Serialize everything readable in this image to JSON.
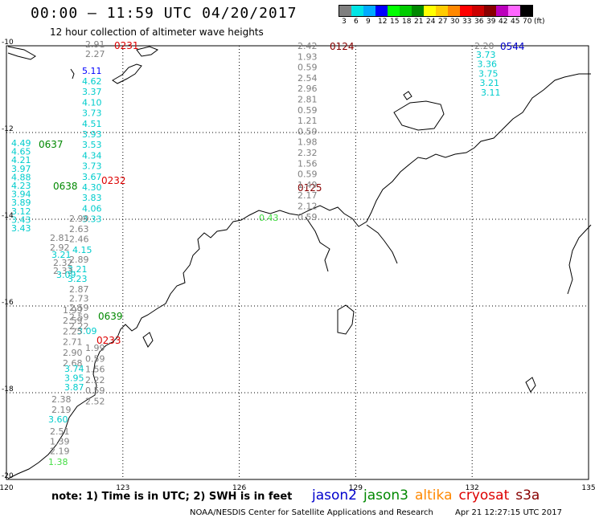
{
  "header": {
    "title": "00:00 — 11:59 UTC 04/20/2017",
    "subtitle": "12 hour collection of altimeter wave heights"
  },
  "legend": {
    "unit": "(ft)",
    "bins": [
      {
        "label": "3",
        "color": "#808080"
      },
      {
        "label": "6",
        "color": "#00e5e5"
      },
      {
        "label": "9",
        "color": "#00aaff"
      },
      {
        "label": "12",
        "color": "#0000ff"
      },
      {
        "label": "15",
        "color": "#00ff00"
      },
      {
        "label": "18",
        "color": "#00cc00"
      },
      {
        "label": "21",
        "color": "#008800"
      },
      {
        "label": "24",
        "color": "#ffff00"
      },
      {
        "label": "27",
        "color": "#ffcc00"
      },
      {
        "label": "30",
        "color": "#ff8800"
      },
      {
        "label": "33",
        "color": "#ff0000"
      },
      {
        "label": "36",
        "color": "#cc0000"
      },
      {
        "label": "39",
        "color": "#880000"
      },
      {
        "label": "42",
        "color": "#bb00bb"
      },
      {
        "label": "45",
        "color": "#ff66ff"
      },
      {
        "label": "70",
        "color": "#000000"
      }
    ]
  },
  "map": {
    "lon_ticks": [
      "120",
      "123",
      "126",
      "129",
      "132",
      "135"
    ],
    "lat_ticks": [
      "-10",
      "-12",
      "-14",
      "-16",
      "-18",
      "-20"
    ],
    "lon_range": [
      120,
      135
    ],
    "lat_range": [
      -10,
      -20
    ]
  },
  "passes": [
    {
      "label": "0231",
      "color": "#dd0000"
    },
    {
      "label": "0124",
      "color": "#880000"
    },
    {
      "label": "0544",
      "color": "#0000cc"
    },
    {
      "label": "0637",
      "color": "#008800"
    },
    {
      "label": "0638",
      "color": "#008800"
    },
    {
      "label": "0232",
      "color": "#dd0000"
    },
    {
      "label": "0125",
      "color": "#880000"
    },
    {
      "label": "0639",
      "color": "#008800"
    },
    {
      "label": "0233",
      "color": "#dd0000"
    }
  ],
  "tracks": [
    {
      "color": "#808080",
      "values": [
        "2.91",
        "2.27"
      ]
    },
    {
      "color": "#0000ff",
      "values": [
        "5.11"
      ]
    },
    {
      "color": "#00cccc",
      "values": [
        "4.62",
        "3.37",
        "4.10",
        "3.73",
        "4.51",
        "3.93",
        "3.53",
        "4.34",
        "3.73",
        "3.67",
        "4.30",
        "3.83",
        "4.06",
        "3.33"
      ]
    },
    {
      "color": "#808080",
      "values": [
        "2.99",
        "2.63",
        "2.46"
      ]
    },
    {
      "color": "#00cccc",
      "values": [
        "4.15"
      ]
    },
    {
      "color": "#808080",
      "values": [
        "2.89"
      ]
    },
    {
      "color": "#00cccc",
      "values": [
        "3.21",
        "3.23"
      ]
    },
    {
      "color": "#808080",
      "values": [
        "2.87",
        "2.73",
        "2.59",
        "2.59",
        "2.22"
      ]
    },
    {
      "color": "#00cccc",
      "values": [
        "3.09"
      ]
    },
    {
      "color": "#808080",
      "values": [
        "1.99",
        "0.59",
        "1.56",
        "2.22",
        "0.59",
        "2.52"
      ]
    },
    {
      "color": "#00cccc",
      "values": [
        "4.49",
        "4.65",
        "4.21",
        "3.97",
        "4.88",
        "4.23",
        "3.94",
        "3.89",
        "3.12",
        "3.43",
        "3.43"
      ]
    },
    {
      "color": "#808080",
      "values": [
        "2.81",
        "2.92"
      ]
    },
    {
      "color": "#00cccc",
      "values": [
        "3.21"
      ]
    },
    {
      "color": "#808080",
      "values": [
        "2.32",
        "2.33"
      ]
    },
    {
      "color": "#00cccc",
      "values": [
        "3.09"
      ]
    },
    {
      "color": "#808080",
      "values": [
        "1.99",
        "2.59",
        "2.25",
        "2.71",
        "2.90",
        "2.68"
      ]
    },
    {
      "color": "#00cccc",
      "values": [
        "3.74",
        "3.95",
        "3.87"
      ]
    },
    {
      "color": "#808080",
      "values": [
        "2.38",
        "2.19"
      ]
    },
    {
      "color": "#00cccc",
      "values": [
        "3.60"
      ]
    },
    {
      "color": "#808080",
      "values": [
        "2.51",
        "1.39",
        "2.19"
      ]
    },
    {
      "color": "#44dd44",
      "values": [
        "1.38"
      ]
    },
    {
      "color": "#808080",
      "values": [
        "2.42",
        "1.93",
        "0.59",
        "2.54",
        "2.96",
        "2.81",
        "0.59",
        "1.21",
        "0.59",
        "1.98",
        "2.32",
        "1.56",
        "0.59",
        "1.49",
        "2.17",
        "2.12",
        "0.59"
      ]
    },
    {
      "color": "#44dd44",
      "values": [
        "0.43"
      ]
    },
    {
      "color": "#808080",
      "values": [
        "2.20"
      ]
    },
    {
      "color": "#00cccc",
      "values": [
        "3.73",
        "3.36",
        "3.75",
        "3.21",
        "3.11"
      ]
    }
  ],
  "note": "note: 1) Time is in UTC; 2) SWH is in feet",
  "satellites": [
    {
      "name": "jason2",
      "color": "#0000cc"
    },
    {
      "name": "jason3",
      "color": "#008800"
    },
    {
      "name": "altika",
      "color": "#ff8800"
    },
    {
      "name": "cryosat",
      "color": "#dd0000"
    },
    {
      "name": "s3a",
      "color": "#880000"
    }
  ],
  "footer": {
    "credit": "NOAA/NESDIS Center for Satellite Applications and Research",
    "timestamp": "Apr 21 12:27:15 UTC 2017"
  }
}
